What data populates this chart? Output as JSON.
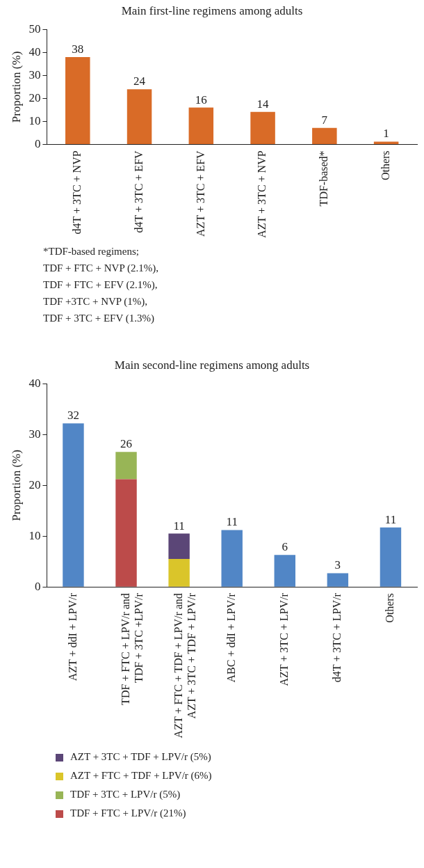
{
  "chart_data": [
    {
      "type": "bar",
      "title": "Main first-line regimens among adults",
      "ylabel": "Proportion (%)",
      "categories": [
        "d4T + 3TC + NVP",
        "d4T + 3TC + EFV",
        "AZT + 3TC + EFV",
        "AZT + 3TC + NVP",
        "TDF-based*",
        "Others"
      ],
      "values": [
        38,
        24,
        16,
        14.1,
        7.2,
        1.2
      ],
      "color": "#d96b27",
      "value_labels": [
        "38",
        "24",
        "16",
        "14",
        "7",
        "1"
      ],
      "ylim": [
        0,
        50
      ],
      "yticks": [
        0,
        10,
        20,
        30,
        40,
        50
      ],
      "grid": false,
      "annotations": [
        "*TDF-based regimens;",
        "TDF + FTC + NVP (2.1%),",
        "TDF + FTC + EFV (2.1%),",
        "TDF +3TC + NVP (1%),",
        "TDF + 3TC + EFV (1.3%)"
      ]
    },
    {
      "type": "bar",
      "title": "Main second-line regimens among adults",
      "ylabel": "Proportion (%)",
      "categories": [
        "AZT + ddI + LPV/r",
        "TDF + FTC + LPV/r and\nTDF + 3TC +LPV/r",
        "AZT + FTC + TDF + LPV/r and\nAZT + 3TC + TDF + LPV/r",
        "ABC + ddI + LPV/r",
        "AZT + 3TC + LPV/r",
        "d4T + 3TC + LPV/r",
        "Others"
      ],
      "stacked": true,
      "series": [
        {
          "color": "#5186c6",
          "values": [
            32.2,
            null,
            null,
            11.2,
            6.3,
            2.7,
            11.7
          ]
        },
        {
          "name": "TDF + FTC + LPV/r (21%)",
          "color": "#bc4b4a",
          "values": [
            null,
            21.2,
            null,
            null,
            null,
            null,
            null
          ]
        },
        {
          "name": "TDF + 3TC + LPV/r (5%)",
          "color": "#98b556",
          "values": [
            null,
            5.4,
            null,
            null,
            null,
            null,
            null
          ]
        },
        {
          "name": "AZT + FTC + TDF + LPV/r (6%)",
          "color": "#dac52a",
          "values": [
            null,
            null,
            5.5,
            null,
            null,
            null,
            null
          ]
        },
        {
          "name": "AZT + 3TC + TDF + LPV/r (5%)",
          "color": "#5b4677",
          "values": [
            null,
            null,
            5.0,
            null,
            null,
            null,
            null
          ]
        }
      ],
      "totals": [
        "32",
        "26",
        "11",
        "11",
        "6",
        "3",
        "11"
      ],
      "ylim": [
        0,
        40
      ],
      "yticks": [
        0,
        10,
        20,
        30,
        40
      ],
      "grid": false,
      "legend": "bottom"
    }
  ]
}
